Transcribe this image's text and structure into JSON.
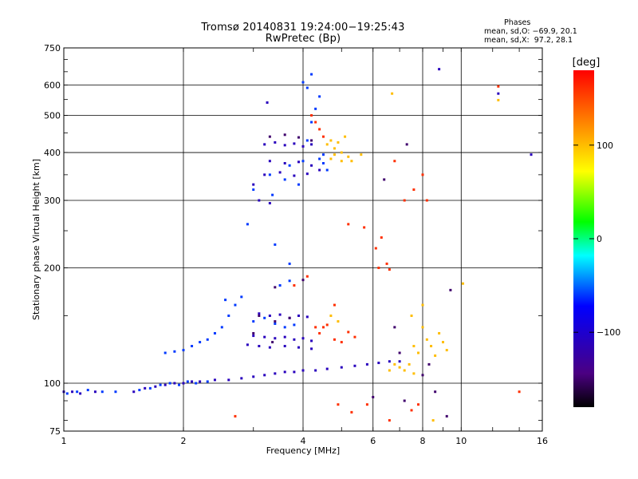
{
  "header": {
    "title_line1": "Tromsø 20140831 19:24:00−19:25:43",
    "title_line2": "RwPretec (Bp)",
    "stats_heading": "Phases",
    "stats_o": "mean, sd,O: −69.9, 20.1",
    "stats_x": "mean, sd,X:  97.2, 28.1"
  },
  "chart_data": {
    "type": "scatter",
    "xlabel": "Frequency [MHz]",
    "ylabel": "Stationary phase Virtual Height [km]",
    "x_scale": "log",
    "y_scale": "log",
    "xlim": [
      1,
      16
    ],
    "ylim": [
      75,
      750
    ],
    "x_ticks": [
      1,
      2,
      4,
      6,
      8,
      10,
      16
    ],
    "x_tick_labels": [
      "1",
      "2",
      "4",
      "6",
      "8",
      "10",
      "16"
    ],
    "y_ticks": [
      75,
      100,
      200,
      300,
      400,
      500,
      600,
      750
    ],
    "y_tick_labels": [
      "75",
      "100",
      "200",
      "300",
      "400",
      "500",
      "600",
      "750"
    ],
    "grid": true,
    "colorbar": {
      "label": "[deg]",
      "range": [
        -180,
        180
      ],
      "ticks": [
        100,
        0,
        -100
      ],
      "tick_labels": [
        "100",
        "0",
        "−100"
      ]
    },
    "series": [
      {
        "description_color": "blue-purple",
        "phase": -110,
        "points": [
          [
            1.0,
            95
          ],
          [
            1.05,
            95
          ],
          [
            1.1,
            94
          ],
          [
            1.2,
            95
          ],
          [
            1.5,
            95
          ],
          [
            1.6,
            97
          ],
          [
            1.7,
            98
          ],
          [
            1.8,
            99
          ],
          [
            1.9,
            100
          ],
          [
            2.0,
            100
          ],
          [
            2.1,
            101
          ],
          [
            2.2,
            101
          ],
          [
            2.4,
            102
          ],
          [
            2.6,
            102
          ],
          [
            2.8,
            103
          ],
          [
            3.0,
            104
          ],
          [
            3.2,
            105
          ],
          [
            3.4,
            106
          ],
          [
            3.6,
            107
          ],
          [
            3.8,
            107
          ],
          [
            4.0,
            108
          ],
          [
            4.3,
            108
          ],
          [
            4.6,
            109
          ],
          [
            5.0,
            110
          ],
          [
            5.4,
            111
          ],
          [
            5.8,
            112
          ],
          [
            6.2,
            113
          ],
          [
            6.6,
            114
          ],
          [
            7.0,
            114
          ],
          [
            3.1,
            152
          ],
          [
            3.3,
            150
          ],
          [
            3.5,
            151
          ],
          [
            3.7,
            148
          ],
          [
            3.9,
            150
          ],
          [
            4.1,
            149
          ],
          [
            3.0,
            133
          ],
          [
            3.2,
            132
          ],
          [
            3.4,
            131
          ],
          [
            3.6,
            132
          ],
          [
            3.8,
            130
          ],
          [
            4.0,
            131
          ],
          [
            4.2,
            129
          ],
          [
            2.9,
            126
          ],
          [
            3.1,
            125
          ],
          [
            3.3,
            124
          ],
          [
            3.6,
            125
          ],
          [
            3.9,
            124
          ],
          [
            4.2,
            123
          ],
          [
            3.2,
            420
          ],
          [
            3.4,
            425
          ],
          [
            3.6,
            418
          ],
          [
            3.8,
            422
          ],
          [
            4.0,
            415
          ],
          [
            4.2,
            420
          ],
          [
            3.3,
            380
          ],
          [
            3.6,
            375
          ],
          [
            3.9,
            378
          ],
          [
            4.2,
            370
          ],
          [
            3.2,
            350
          ],
          [
            3.5,
            355
          ],
          [
            3.8,
            348
          ],
          [
            4.1,
            352
          ],
          [
            4.4,
            360
          ],
          [
            3.1,
            300
          ],
          [
            3.3,
            295
          ],
          [
            3.0,
            330
          ],
          [
            3.25,
            540
          ],
          [
            8.8,
            660
          ],
          [
            15,
            395
          ],
          [
            12.4,
            570
          ]
        ]
      },
      {
        "description_color": "cyan",
        "phase": -60,
        "points": [
          [
            1.02,
            94
          ],
          [
            1.08,
            95
          ],
          [
            1.15,
            96
          ],
          [
            1.25,
            95
          ],
          [
            1.35,
            95
          ],
          [
            1.55,
            96
          ],
          [
            1.65,
            97
          ],
          [
            1.75,
            99
          ],
          [
            1.85,
            100
          ],
          [
            1.95,
            99
          ],
          [
            2.05,
            101
          ],
          [
            2.15,
            100
          ],
          [
            2.3,
            101
          ],
          [
            1.8,
            120
          ],
          [
            1.9,
            121
          ],
          [
            2.0,
            122
          ],
          [
            2.1,
            125
          ],
          [
            2.2,
            128
          ],
          [
            2.3,
            130
          ],
          [
            2.4,
            135
          ],
          [
            2.5,
            140
          ],
          [
            2.6,
            150
          ],
          [
            2.7,
            160
          ],
          [
            2.8,
            168
          ],
          [
            2.55,
            165
          ],
          [
            3.0,
            145
          ],
          [
            3.2,
            148
          ],
          [
            3.4,
            143
          ],
          [
            3.6,
            140
          ],
          [
            3.8,
            142
          ],
          [
            3.5,
            180
          ],
          [
            3.7,
            185
          ],
          [
            4.0,
            380
          ],
          [
            4.1,
            430
          ],
          [
            4.2,
            480
          ],
          [
            4.3,
            520
          ],
          [
            4.4,
            560
          ],
          [
            4.0,
            610
          ],
          [
            4.2,
            640
          ],
          [
            4.1,
            590
          ],
          [
            3.9,
            330
          ],
          [
            3.6,
            340
          ],
          [
            3.3,
            350
          ],
          [
            3.0,
            320
          ],
          [
            2.9,
            260
          ],
          [
            3.35,
            310
          ],
          [
            3.7,
            370
          ],
          [
            4.4,
            385
          ],
          [
            4.5,
            395
          ],
          [
            4.6,
            360
          ],
          [
            4.5,
            375
          ],
          [
            3.4,
            230
          ],
          [
            3.7,
            205
          ]
        ]
      },
      {
        "description_color": "yellow-green",
        "phase": 100,
        "points": [
          [
            4.6,
            420
          ],
          [
            4.7,
            430
          ],
          [
            4.8,
            410
          ],
          [
            4.9,
            425
          ],
          [
            5.0,
            400
          ],
          [
            5.1,
            440
          ],
          [
            4.7,
            385
          ],
          [
            4.8,
            395
          ],
          [
            5.0,
            380
          ],
          [
            5.2,
            390
          ],
          [
            5.3,
            380
          ],
          [
            6.6,
            108
          ],
          [
            6.8,
            112
          ],
          [
            7.0,
            110
          ],
          [
            7.2,
            108
          ],
          [
            7.4,
            112
          ],
          [
            7.6,
            106
          ],
          [
            7.8,
            120
          ],
          [
            8.0,
            140
          ],
          [
            8.2,
            130
          ],
          [
            8.4,
            125
          ],
          [
            8.6,
            118
          ],
          [
            8.8,
            135
          ],
          [
            9.0,
            128
          ],
          [
            9.2,
            122
          ],
          [
            8.0,
            160
          ],
          [
            7.5,
            150
          ],
          [
            4.7,
            150
          ],
          [
            4.9,
            145
          ],
          [
            12.4,
            548
          ],
          [
            10.1,
            182
          ],
          [
            6.7,
            570
          ],
          [
            8.5,
            80
          ],
          [
            7.6,
            125
          ],
          [
            5.6,
            395
          ]
        ]
      },
      {
        "description_color": "orange-red",
        "phase": 160,
        "points": [
          [
            4.3,
            140
          ],
          [
            4.4,
            135
          ],
          [
            4.5,
            140
          ],
          [
            4.6,
            142
          ],
          [
            4.8,
            130
          ],
          [
            5.0,
            128
          ],
          [
            5.2,
            136
          ],
          [
            5.4,
            132
          ],
          [
            4.2,
            500
          ],
          [
            4.3,
            480
          ],
          [
            4.4,
            460
          ],
          [
            4.5,
            440
          ],
          [
            6.5,
            205
          ],
          [
            6.6,
            198
          ],
          [
            6.8,
            380
          ],
          [
            7.2,
            300
          ],
          [
            7.6,
            320
          ],
          [
            8.0,
            350
          ],
          [
            5.7,
            255
          ],
          [
            6.2,
            200
          ],
          [
            5.2,
            260
          ],
          [
            6.1,
            225
          ],
          [
            6.3,
            240
          ],
          [
            4.9,
            88
          ],
          [
            5.3,
            84
          ],
          [
            5.8,
            88
          ],
          [
            6.6,
            80
          ],
          [
            7.5,
            85
          ],
          [
            7.8,
            88
          ],
          [
            3.8,
            180
          ],
          [
            4.1,
            190
          ],
          [
            4.8,
            160
          ],
          [
            2.7,
            82
          ],
          [
            12.4,
            595
          ],
          [
            8.2,
            300
          ],
          [
            14.0,
            95
          ]
        ]
      },
      {
        "description_color": "dark-purple",
        "phase": -150,
        "points": [
          [
            3.3,
            440
          ],
          [
            3.6,
            445
          ],
          [
            3.9,
            438
          ],
          [
            4.2,
            430
          ],
          [
            3.1,
            150
          ],
          [
            3.4,
            145
          ],
          [
            3.7,
            148
          ],
          [
            3.0,
            135
          ],
          [
            3.35,
            128
          ],
          [
            8.6,
            95
          ],
          [
            9.2,
            82
          ],
          [
            7.2,
            90
          ],
          [
            6.0,
            92
          ],
          [
            3.4,
            178
          ],
          [
            4.0,
            186
          ],
          [
            8.0,
            105
          ],
          [
            8.3,
            112
          ],
          [
            9.4,
            175
          ],
          [
            6.8,
            140
          ],
          [
            7.0,
            120
          ],
          [
            7.3,
            420
          ],
          [
            6.4,
            340
          ]
        ]
      }
    ]
  }
}
